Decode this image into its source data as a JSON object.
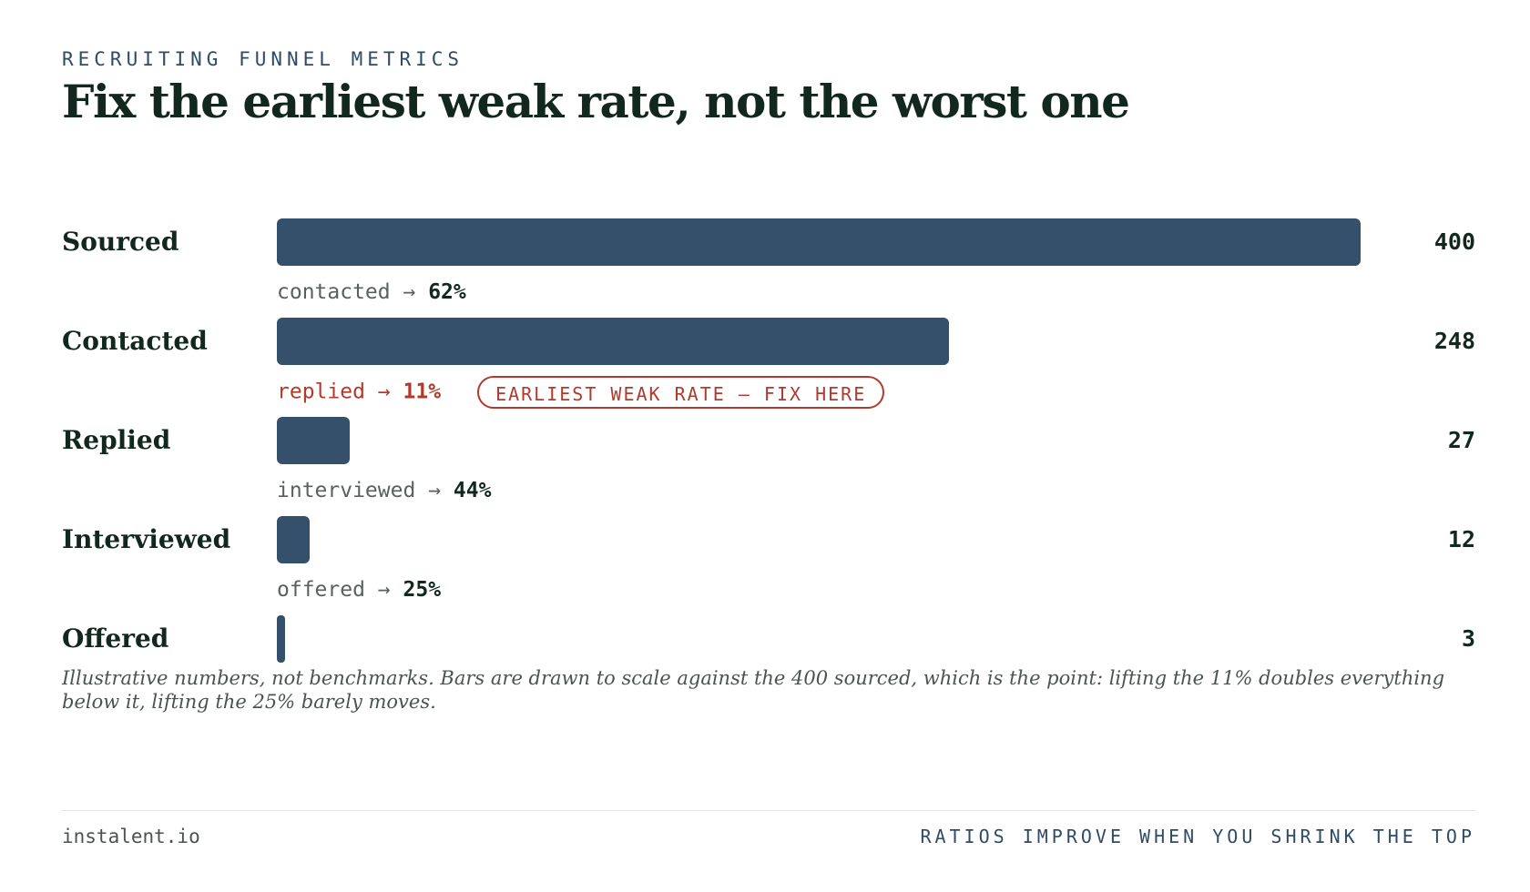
{
  "header": {
    "eyebrow": "RECRUITING FUNNEL METRICS",
    "title": "Fix the earliest weak rate, not the worst one"
  },
  "chart_data": {
    "type": "bar",
    "orientation": "horizontal",
    "categories": [
      "Sourced",
      "Contacted",
      "Replied",
      "Interviewed",
      "Offered"
    ],
    "values": [
      400,
      248,
      27,
      12,
      3
    ],
    "value_labels": [
      "400",
      "248",
      "27",
      "12",
      "3"
    ],
    "xlim": [
      0,
      400
    ],
    "bar_color": "#34506b",
    "conversions": [
      {
        "label": "contacted",
        "arrow": "→",
        "rate": "62%",
        "weak": false
      },
      {
        "label": "replied",
        "arrow": "→",
        "rate": "11%",
        "weak": true
      },
      {
        "label": "interviewed",
        "arrow": "→",
        "rate": "44%",
        "weak": false
      },
      {
        "label": "offered",
        "arrow": "→",
        "rate": "25%",
        "weak": false
      }
    ],
    "annotation": "EARLIEST WEAK RATE — FIX HERE",
    "weak_color": "#b23a2c"
  },
  "note": "Illustrative numbers, not benchmarks. Bars are drawn to scale against the 400 sourced, which is the point: lifting the 11% doubles everything below it, lifting the 25% barely moves.",
  "footer": {
    "brand": "instalent.io",
    "tagline": "RATIOS IMPROVE WHEN YOU SHRINK THE TOP"
  }
}
